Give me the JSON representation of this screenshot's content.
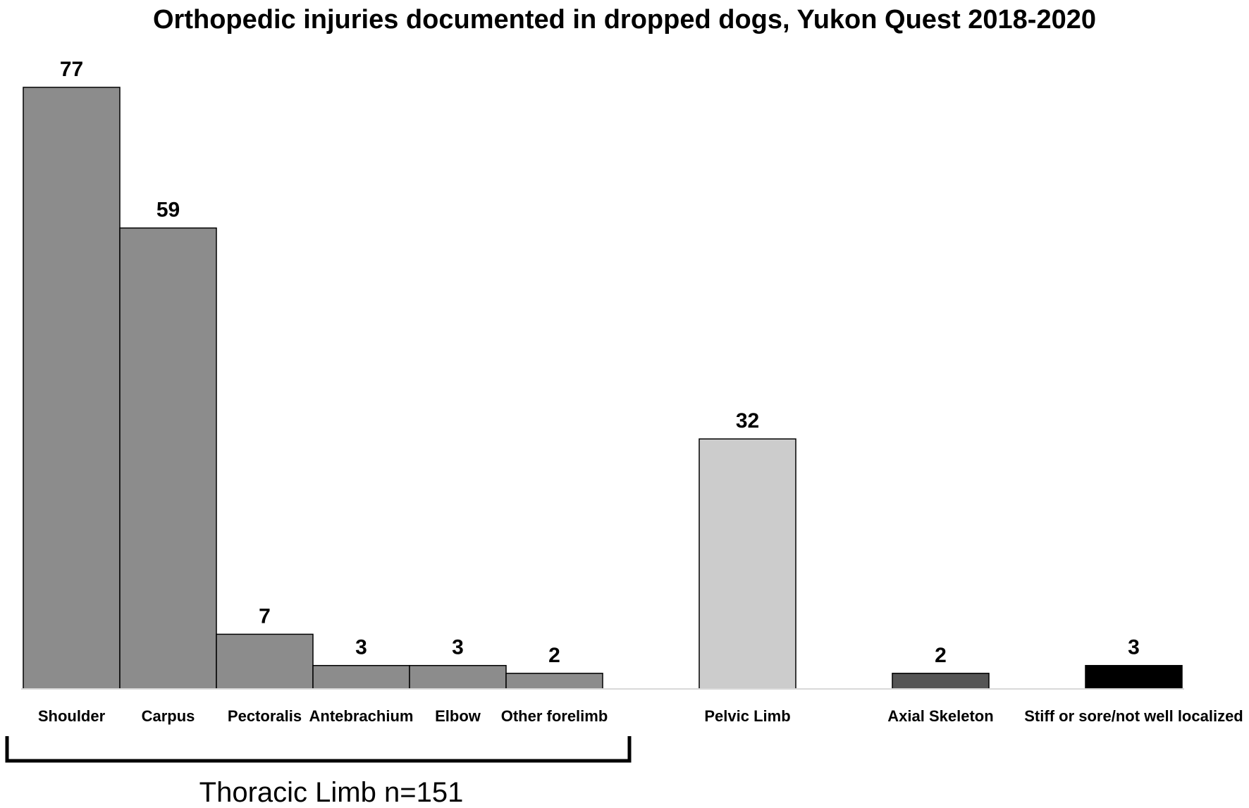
{
  "chart_data": {
    "type": "bar",
    "title": "Orthopedic injuries documented in dropped dogs, Yukon Quest 2018-2020",
    "categories": [
      "Shoulder",
      "Carpus",
      "Pectoralis",
      "Antebrachium",
      "Elbow",
      "Other forelimb",
      "Pelvic Limb",
      "Axial Skeleton",
      "Stiff or sore/not well localized"
    ],
    "values": [
      77,
      59,
      7,
      3,
      3,
      2,
      32,
      2,
      3
    ],
    "colors": [
      "#8c8c8c",
      "#8c8c8c",
      "#8c8c8c",
      "#8c8c8c",
      "#8c8c8c",
      "#8c8c8c",
      "#cccccc",
      "#555555",
      "#000000"
    ],
    "ylim": [
      0,
      77
    ],
    "xlabel": "",
    "ylabel": "",
    "grid": false,
    "legend": "none",
    "group_label": {
      "text": "Thoracic Limb n=151",
      "categories": [
        "Shoulder",
        "Carpus",
        "Pectoralis",
        "Antebrachium",
        "Elbow",
        "Other forelimb"
      ]
    }
  }
}
